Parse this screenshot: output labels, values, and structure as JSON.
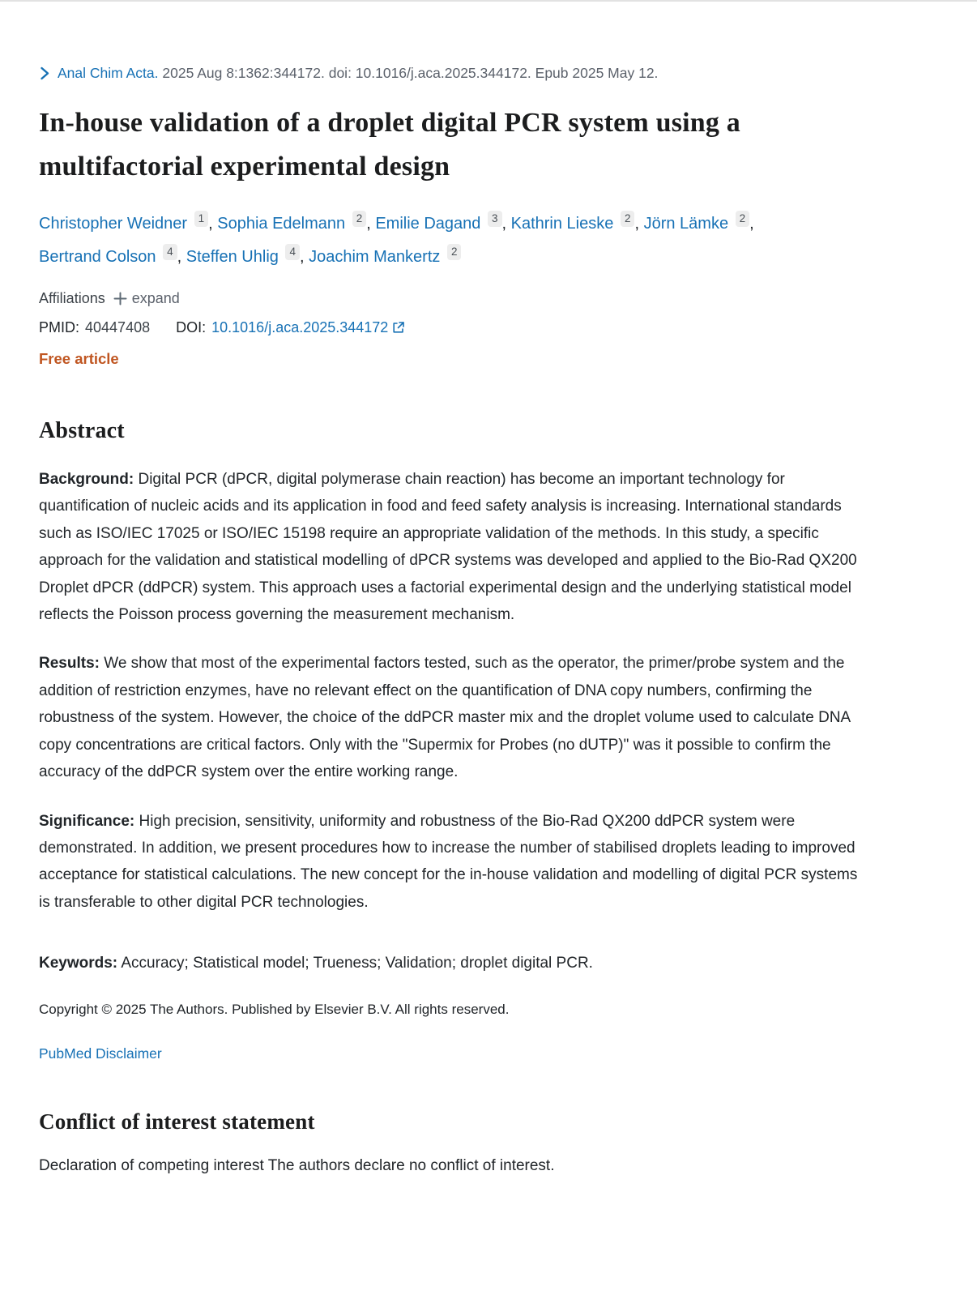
{
  "colors": {
    "link_blue": "#1771b5",
    "citation_gray": "#5b616b",
    "free_article_orange": "#c05621",
    "text_dark": "#212529",
    "superscript_bg": "#ededed"
  },
  "citation": {
    "journal_link": "Anal Chim Acta.",
    "details": "2025 Aug 8:1362:344172. doi: 10.1016/j.aca.2025.344172. Epub 2025 May 12."
  },
  "article": {
    "title": "In-house validation of a droplet digital PCR system using a multifactorial experimental design",
    "authors": [
      {
        "name": "Christopher Weidner",
        "sup": "1"
      },
      {
        "name": "Sophia Edelmann",
        "sup": "2"
      },
      {
        "name": "Emilie Dagand",
        "sup": "3"
      },
      {
        "name": "Kathrin Lieske",
        "sup": "2"
      },
      {
        "name": "Jörn Lämke",
        "sup": "2"
      },
      {
        "name": "Bertrand Colson",
        "sup": "4"
      },
      {
        "name": "Steffen Uhlig",
        "sup": "4"
      },
      {
        "name": "Joachim Mankertz",
        "sup": "2"
      }
    ],
    "affiliations": {
      "label": "Affiliations",
      "expand_label": "expand"
    },
    "identifiers": {
      "pmid_label": "PMID:",
      "pmid_value": "40447408",
      "doi_label": "DOI:",
      "doi_value": "10.1016/j.aca.2025.344172"
    },
    "access_badge": "Free article"
  },
  "abstract": {
    "heading": "Abstract",
    "sections": [
      {
        "label": "Background:",
        "text": "Digital PCR (dPCR, digital polymerase chain reaction) has become an important technology for quantification of nucleic acids and its application in food and feed safety analysis is increasing. International standards such as ISO/IEC 17025 or ISO/IEC 15198 require an appropriate validation of the methods. In this study, a specific approach for the validation and statistical modelling of dPCR systems was developed and applied to the Bio-Rad QX200 Droplet dPCR (ddPCR) system. This approach uses a factorial experimental design and the underlying statistical model reflects the Poisson process governing the measurement mechanism."
      },
      {
        "label": "Results:",
        "text": "We show that most of the experimental factors tested, such as the operator, the primer/probe system and the addition of restriction enzymes, have no relevant effect on the quantification of DNA copy numbers, confirming the robustness of the system. However, the choice of the ddPCR master mix and the droplet volume used to calculate DNA copy concentrations are critical factors. Only with the \"Supermix for Probes (no dUTP)\" was it possible to confirm the accuracy of the ddPCR system over the entire working range."
      },
      {
        "label": "Significance:",
        "text": "High precision, sensitivity, uniformity and robustness of the Bio-Rad QX200 ddPCR system were demonstrated. In addition, we present procedures how to increase the number of stabilised droplets leading to improved acceptance for statistical calculations. The new concept for the in-house validation and modelling of digital PCR systems is transferable to other digital PCR technologies."
      }
    ],
    "keywords_label": "Keywords:",
    "keywords_text": "Accuracy; Statistical model; Trueness; Validation; droplet digital PCR.",
    "copyright": "Copyright © 2025 The Authors. Published by Elsevier B.V. All rights reserved.",
    "disclaimer_link": "PubMed Disclaimer"
  },
  "conflict": {
    "heading": "Conflict of interest statement",
    "text": "Declaration of competing interest The authors declare no conflict of interest."
  }
}
